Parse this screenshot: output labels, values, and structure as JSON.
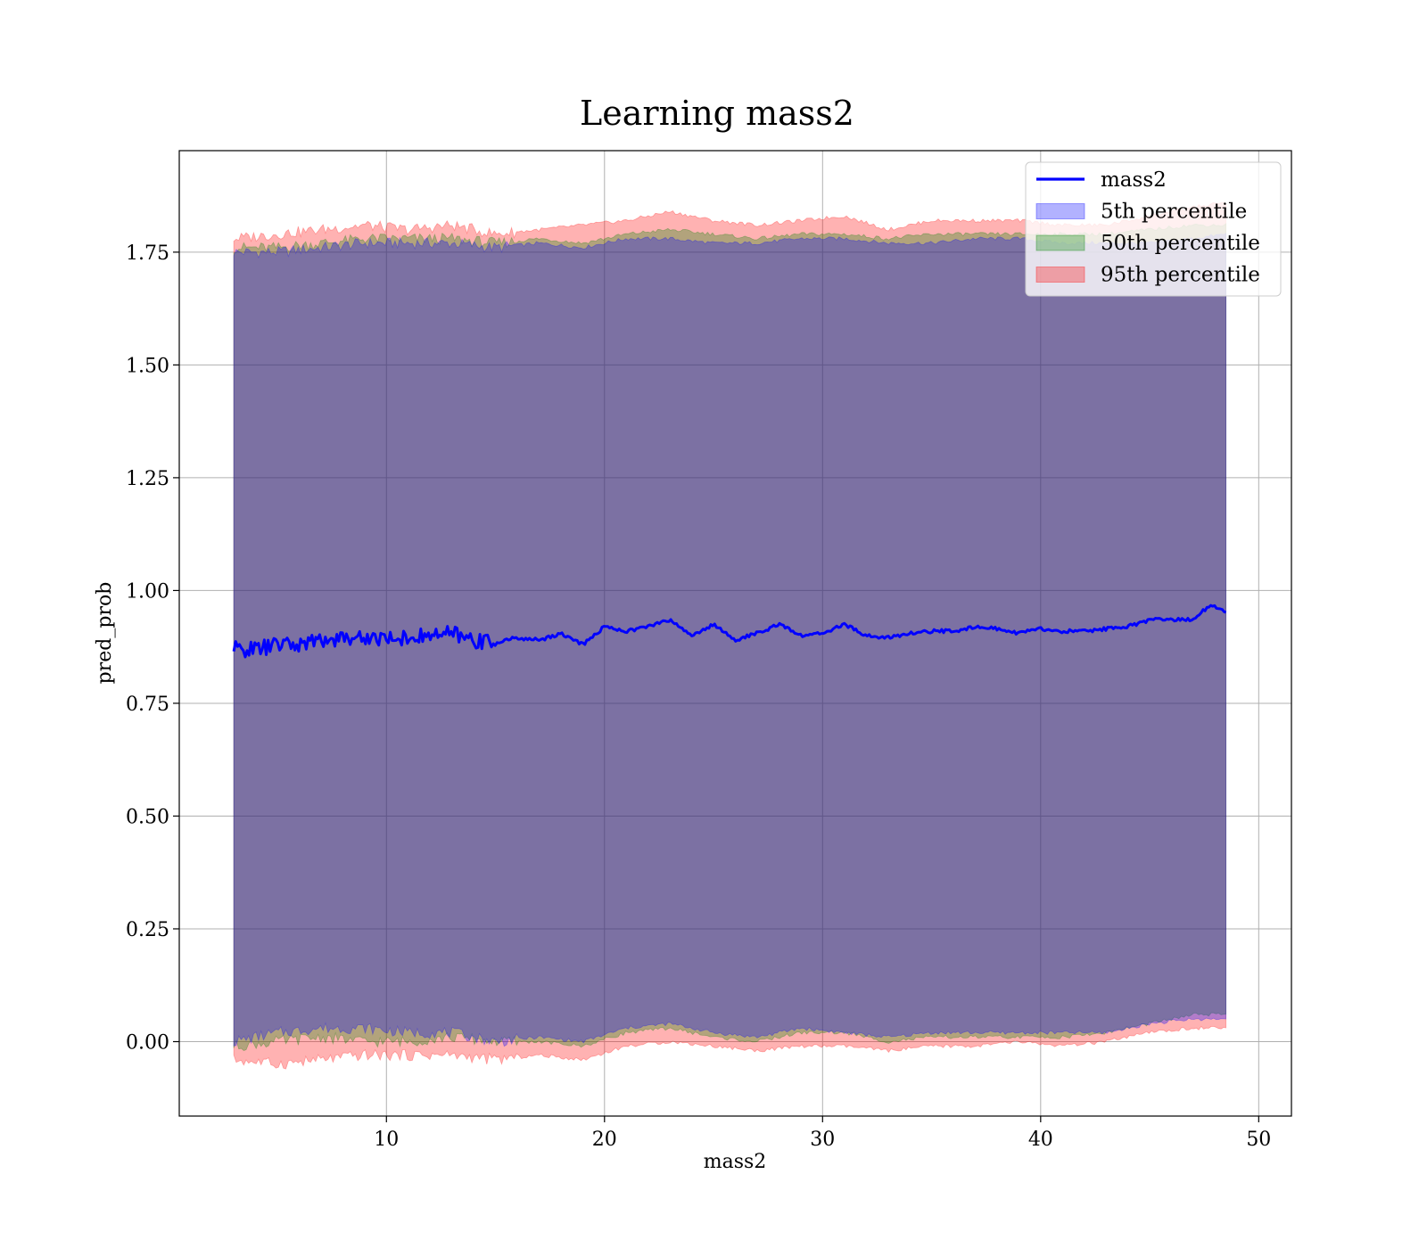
{
  "chart_data": {
    "type": "line",
    "title": "Learning mass2",
    "xlabel": "mass2",
    "ylabel": "pred_prob",
    "xlim": [
      0.5,
      51.5
    ],
    "ylim": [
      -0.165,
      1.975
    ],
    "xticks": [
      10,
      20,
      30,
      40,
      50
    ],
    "xtick_labels": [
      "10",
      "20",
      "30",
      "40",
      "50"
    ],
    "yticks": [
      0.0,
      0.25,
      0.5,
      0.75,
      1.0,
      1.25,
      1.5,
      1.75
    ],
    "ytick_labels": [
      "0.00",
      "0.25",
      "0.50",
      "0.75",
      "1.00",
      "1.25",
      "1.50",
      "1.75"
    ],
    "grid": true,
    "legend_position": "top-right",
    "colors": {
      "line": "#0000ff",
      "band5": "#0000ff",
      "band50": "#008000",
      "band95": "#ff0000"
    },
    "series": [
      {
        "name": "mass2",
        "x": [
          3.0,
          4.0,
          5.0,
          6.0,
          7.0,
          8.0,
          9.0,
          10.0,
          11.0,
          12.0,
          13.0,
          14.0,
          15.0,
          16.0,
          17.0,
          18.0,
          19.0,
          20.0,
          21.0,
          22.0,
          23.0,
          24.0,
          25.0,
          26.0,
          27.0,
          28.0,
          29.0,
          30.0,
          31.0,
          32.0,
          33.0,
          34.0,
          35.0,
          36.0,
          37.0,
          38.0,
          39.0,
          40.0,
          41.0,
          42.0,
          43.0,
          44.0,
          45.0,
          46.0,
          47.0,
          47.8,
          48.5
        ],
        "y": [
          0.87,
          0.87,
          0.88,
          0.88,
          0.89,
          0.895,
          0.895,
          0.895,
          0.895,
          0.9,
          0.905,
          0.89,
          0.885,
          0.895,
          0.89,
          0.905,
          0.88,
          0.92,
          0.91,
          0.92,
          0.935,
          0.9,
          0.925,
          0.89,
          0.905,
          0.925,
          0.9,
          0.905,
          0.925,
          0.9,
          0.895,
          0.905,
          0.91,
          0.91,
          0.92,
          0.915,
          0.905,
          0.915,
          0.91,
          0.91,
          0.915,
          0.92,
          0.935,
          0.935,
          0.935,
          0.97,
          0.95
        ]
      }
    ],
    "bands": [
      {
        "name": "5th percentile",
        "x": [
          3.0,
          5.0,
          7.0,
          9.0,
          11.0,
          13.0,
          15.0,
          17.0,
          19.0,
          21.0,
          23.0,
          25.0,
          27.0,
          29.0,
          31.0,
          33.0,
          35.0,
          37.0,
          39.0,
          41.0,
          43.0,
          45.0,
          47.0,
          48.5
        ],
        "lower": [
          0.0,
          0.02,
          0.03,
          0.03,
          0.02,
          0.02,
          0.0,
          0.01,
          0.0,
          0.03,
          0.04,
          0.02,
          0.01,
          0.03,
          0.02,
          0.01,
          0.02,
          0.02,
          0.02,
          0.02,
          0.02,
          0.04,
          0.05,
          0.05
        ],
        "upper": [
          1.75,
          1.75,
          1.76,
          1.77,
          1.77,
          1.77,
          1.76,
          1.77,
          1.76,
          1.78,
          1.78,
          1.77,
          1.77,
          1.78,
          1.78,
          1.77,
          1.77,
          1.78,
          1.78,
          1.77,
          1.77,
          1.77,
          1.78,
          1.79
        ]
      },
      {
        "name": "50th percentile",
        "x": [
          3.0,
          5.0,
          7.0,
          9.0,
          11.0,
          13.0,
          15.0,
          17.0,
          19.0,
          21.0,
          23.0,
          25.0,
          27.0,
          29.0,
          31.0,
          33.0,
          35.0,
          37.0,
          39.0,
          41.0,
          43.0,
          45.0,
          47.0,
          48.5
        ],
        "lower": [
          -0.01,
          0.0,
          0.01,
          0.0,
          0.0,
          0.01,
          0.0,
          0.0,
          -0.01,
          0.02,
          0.03,
          0.01,
          0.0,
          0.02,
          0.02,
          0.0,
          0.01,
          0.01,
          0.01,
          0.01,
          0.02,
          0.04,
          0.06,
          0.06
        ],
        "upper": [
          1.76,
          1.76,
          1.77,
          1.78,
          1.78,
          1.78,
          1.77,
          1.78,
          1.77,
          1.79,
          1.8,
          1.79,
          1.78,
          1.79,
          1.79,
          1.78,
          1.79,
          1.79,
          1.79,
          1.79,
          1.79,
          1.8,
          1.81,
          1.81
        ]
      },
      {
        "name": "95th percentile",
        "x": [
          3.0,
          5.0,
          7.0,
          9.0,
          11.0,
          13.0,
          15.0,
          17.0,
          19.0,
          21.0,
          23.0,
          25.0,
          27.0,
          29.0,
          31.0,
          33.0,
          35.0,
          37.0,
          39.0,
          41.0,
          43.0,
          45.0,
          47.0,
          48.5
        ],
        "lower": [
          -0.04,
          -0.05,
          -0.04,
          -0.03,
          -0.03,
          -0.03,
          -0.04,
          -0.03,
          -0.04,
          -0.01,
          0.0,
          -0.01,
          -0.02,
          -0.01,
          -0.01,
          -0.02,
          -0.01,
          -0.01,
          0.0,
          -0.01,
          0.0,
          0.02,
          0.03,
          0.03
        ],
        "upper": [
          1.78,
          1.79,
          1.8,
          1.81,
          1.8,
          1.81,
          1.79,
          1.8,
          1.81,
          1.82,
          1.84,
          1.82,
          1.81,
          1.82,
          1.83,
          1.8,
          1.82,
          1.82,
          1.82,
          1.81,
          1.81,
          1.83,
          1.85,
          1.86
        ]
      }
    ]
  }
}
